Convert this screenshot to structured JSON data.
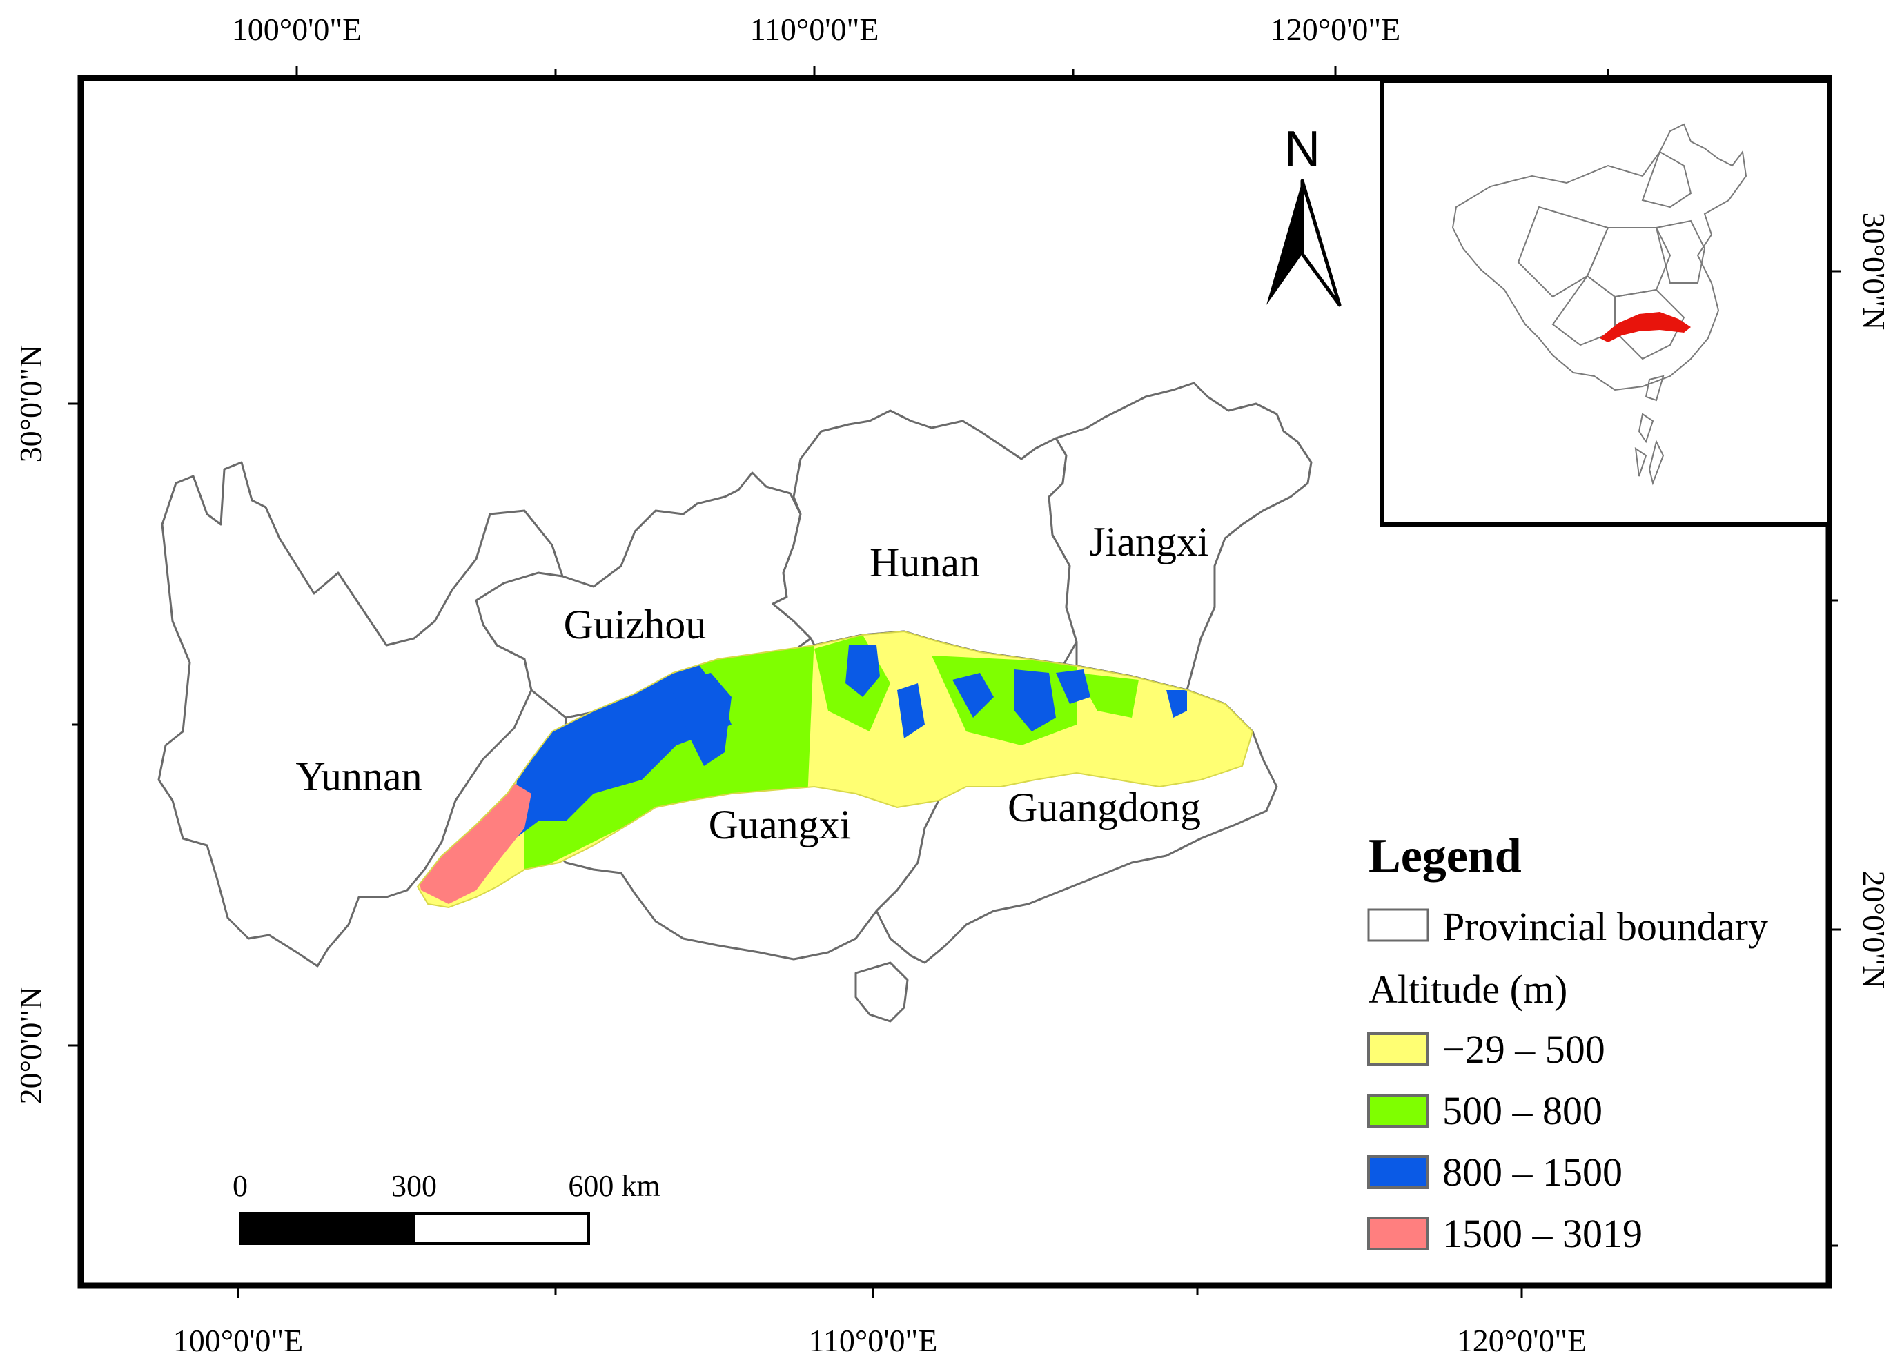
{
  "map": {
    "top_longitudes": [
      "100°0'0\"E",
      "110°0'0\"E",
      "120°0'0\"E"
    ],
    "bottom_longitudes": [
      "100°0'0\"E",
      "110°0'0\"E",
      "120°0'0\"E"
    ],
    "left_latitudes": [
      "30°0'0\"N",
      "20°0'0\"N"
    ],
    "right_latitudes": [
      "30°0'0\"N",
      "20°0'0\"N"
    ],
    "provinces": [
      "Yunnan",
      "Guizhou",
      "Hunan",
      "Jiangxi",
      "Guangxi",
      "Guangdong"
    ],
    "north_arrow": "N",
    "scale_bar": {
      "labels": [
        "0",
        "300",
        "600 km"
      ]
    },
    "inset": {
      "description_icon": "china-locator-map",
      "highlight_color": "#e8140c"
    }
  },
  "legend": {
    "title": "Legend",
    "boundary_label": "Provincial boundary",
    "altitude_title": "Altitude (m)",
    "classes": [
      {
        "label": "−29 – 500",
        "color": "#ffff73"
      },
      {
        "label": "500 – 800",
        "color": "#7fff00"
      },
      {
        "label": "800 – 1500",
        "color": "#0a5ae6"
      },
      {
        "label": "1500 – 3019",
        "color": "#ff7f7f"
      }
    ]
  }
}
